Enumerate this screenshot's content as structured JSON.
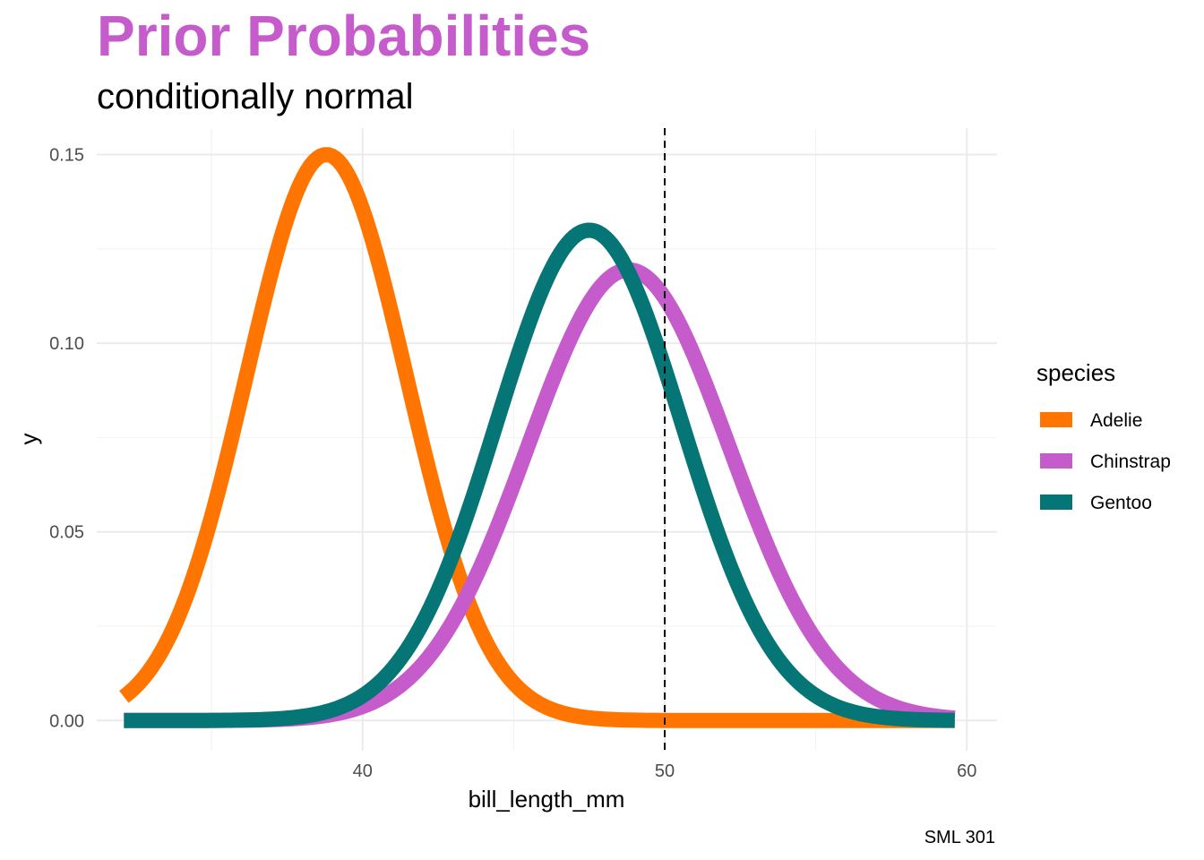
{
  "chart_data": {
    "type": "line",
    "title": "Prior Probabilities",
    "subtitle": "conditionally normal",
    "xlabel": "bill_length_mm",
    "ylabel": "y",
    "caption": "SML 301",
    "xlim": [
      31.2,
      61.0
    ],
    "ylim": [
      -0.008,
      0.157
    ],
    "x_ticks": [
      40,
      50,
      60
    ],
    "x_tick_labels": [
      "40",
      "50",
      "60"
    ],
    "y_ticks": [
      0.0,
      0.05,
      0.1,
      0.15
    ],
    "y_tick_labels": [
      "0.00",
      "0.05",
      "0.10",
      "0.15"
    ],
    "x_range": [
      32.1,
      59.6
    ],
    "vline": {
      "x": 50,
      "style": "dashed",
      "color": "#000000"
    },
    "legend": {
      "title": "species",
      "position": "right"
    },
    "series": [
      {
        "name": "Adelie",
        "color": "#FF7500",
        "mean": 38.8,
        "sd": 2.66
      },
      {
        "name": "Chinstrap",
        "color": "#C65BCB",
        "mean": 48.8,
        "sd": 3.34
      },
      {
        "name": "Gentoo",
        "color": "#057576",
        "mean": 47.5,
        "sd": 3.07
      }
    ],
    "title_color": "#C65BCB"
  }
}
